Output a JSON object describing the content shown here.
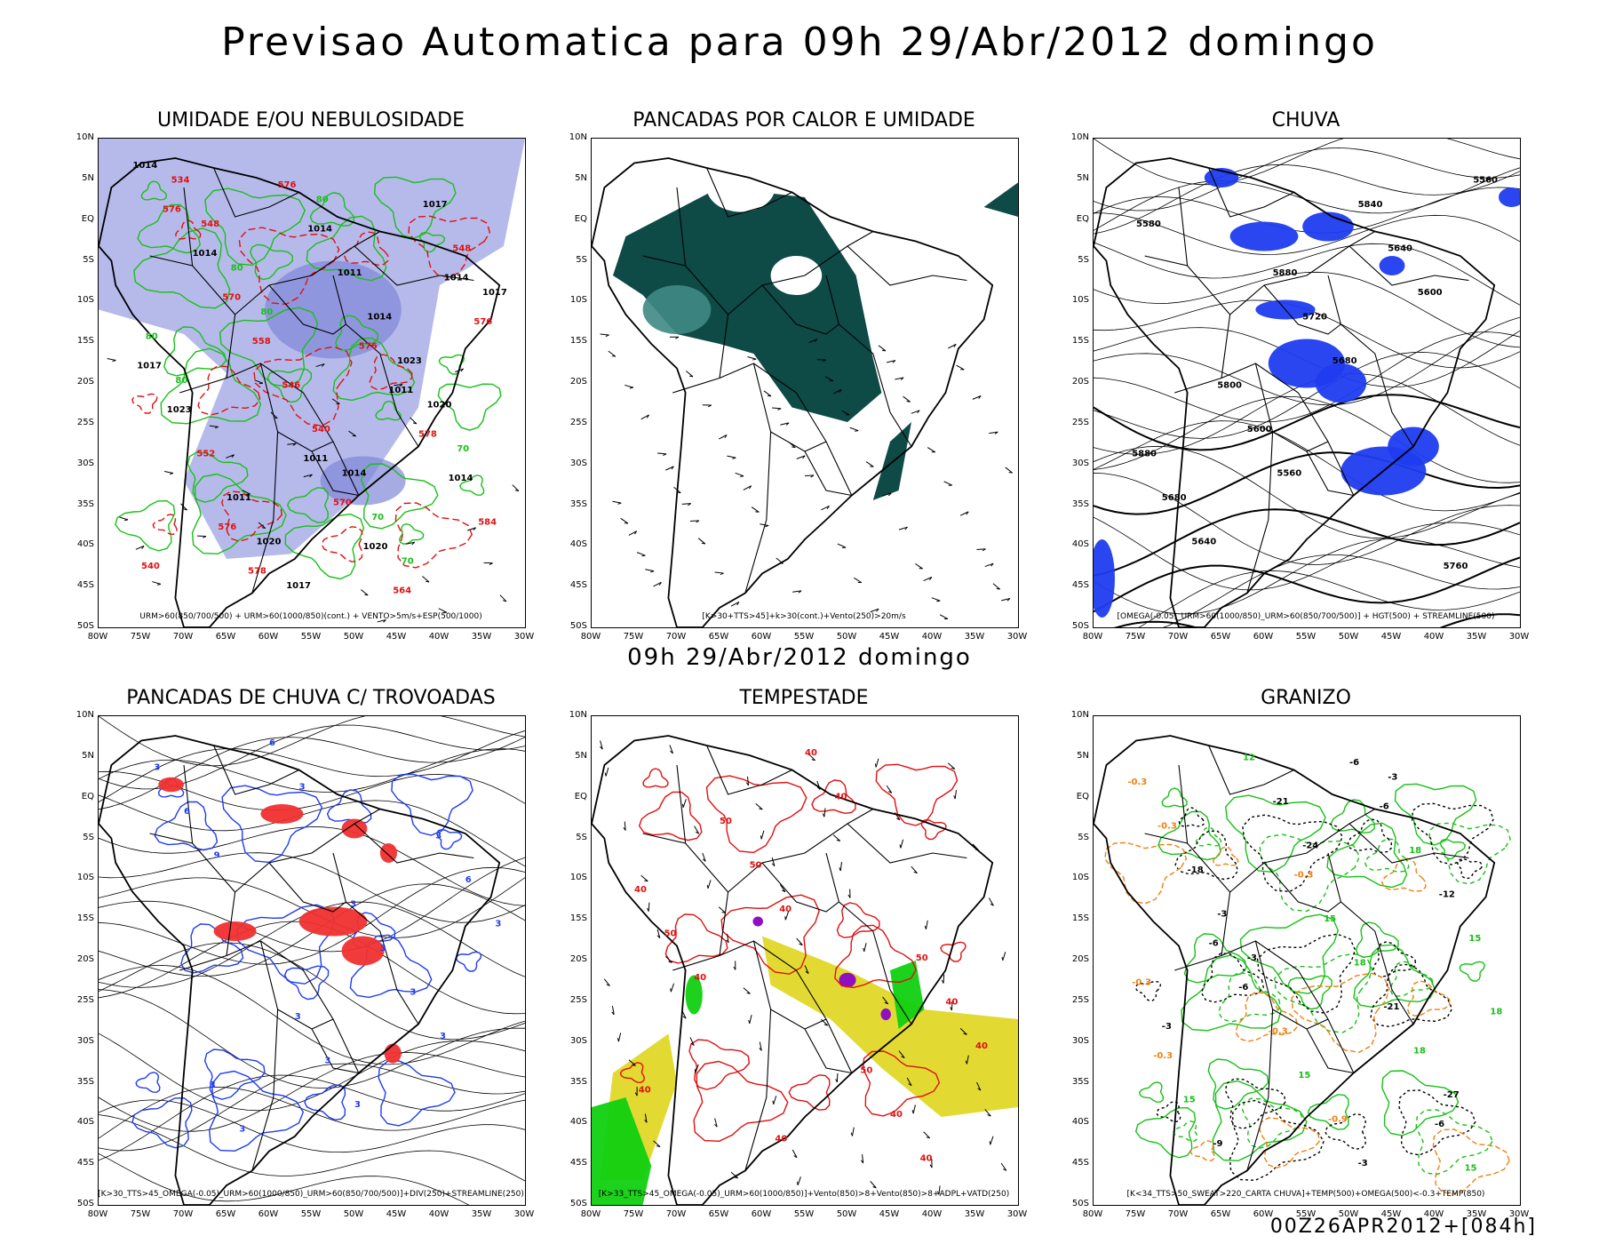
{
  "header": {
    "title": "Previsao Automatica para 09h 29/Abr/2012 domingo",
    "subtitle": "09h 29/Abr/2012 domingo",
    "footer": "00Z26APR2012+[084h]"
  },
  "axes": {
    "lat_labels": [
      "10N",
      "5N",
      "EQ",
      "5S",
      "10S",
      "15S",
      "20S",
      "25S",
      "30S",
      "35S",
      "40S",
      "45S",
      "50S"
    ],
    "lon_labels": [
      "80W",
      "75W",
      "70W",
      "65W",
      "60W",
      "55W",
      "50W",
      "45W",
      "40W",
      "35W",
      "30W"
    ]
  },
  "colors": {
    "humidity_fill": "#a9aee8",
    "green_contour": "#18c018",
    "red_contour": "#e01010",
    "dark_teal": "#0e4a46",
    "rain_blue": "#1f3cf0",
    "storm_red": "#f03030",
    "storm_yellow": "#e0d828",
    "storm_green": "#10d010",
    "storm_purple": "#9010c0",
    "hail_orange": "#f08010"
  },
  "panels": [
    {
      "id": "umidade",
      "title": "UMIDADE E/OU NEBULOSIDADE",
      "caption": "URM>60(850/700/500) + URM>60(1000/850)(cont.) + VENTO>5m/s+ESP(500/1000)",
      "labels": [
        "1014",
        "576",
        "576",
        "1014",
        "1011",
        "576",
        "1011",
        "578",
        "576",
        "570",
        "1014",
        "578",
        "576",
        "1017",
        "1020",
        "570",
        "1014",
        "1014",
        "1023",
        "564",
        "558",
        "584",
        "1011",
        "552",
        "1017",
        "546",
        "540",
        "1014",
        "1011",
        "548",
        "540",
        "534",
        "1023",
        "1020",
        "1017",
        "1014",
        "548",
        "1020",
        "1017",
        "80",
        "70",
        "80",
        "70",
        "80",
        "80",
        "70",
        "80"
      ]
    },
    {
      "id": "pancadas_calor",
      "title": "PANCADAS POR CALOR E UMIDADE",
      "caption": "[K>30+TTS>45]+k>30(cont.)+Vento(250)>20m/s",
      "labels": []
    },
    {
      "id": "chuva",
      "title": "CHUVA",
      "caption": "[OMEGA(-0.05)_URM>60(1000/850)_URM>60(850/700/500)] + HGT(500) + STREAMLINE(500)",
      "labels": [
        "5880",
        "5880",
        "5840",
        "5800",
        "5760",
        "5720",
        "5680",
        "5640",
        "5600",
        "5560",
        "5680",
        "5640",
        "5600",
        "5560",
        "5580"
      ]
    },
    {
      "id": "trovoadas",
      "title": "PANCADAS DE CHUVA C/ TROVOADAS",
      "caption": "[K>30_TTS>45_OMEGA(-0.05)_URM>60(1000/850)_URM>60(850/700/500)]+DIV(250)+STREAMLINE(250)",
      "labels": [
        "3",
        "3",
        "3",
        "3",
        "3",
        "3",
        "3",
        "6",
        "3",
        "6",
        "3",
        "6",
        "3",
        "3",
        "9",
        "3",
        "3"
      ]
    },
    {
      "id": "tempestade",
      "title": "TEMPESTADE",
      "caption": "[K>33_TTS>45_OMEGA(-0.05)_URM>60(1000/850)]+Vento(850)>8+Vento(850)>8+ADPL+VATD(250)",
      "labels": [
        "50",
        "40",
        "40",
        "50",
        "50",
        "40",
        "40",
        "50",
        "40",
        "50",
        "40",
        "40",
        "40",
        "40",
        "40",
        "40"
      ]
    },
    {
      "id": "granizo",
      "title": "GRANIZO",
      "caption": "[K<34_TTS>50_SWEAT>220_CARTA CHUVA]+TEMP(500)+OMEGA(500)<-0.3+TEMP(850)",
      "labels": [
        "18",
        "-6",
        "-6",
        "-6",
        "-0.3",
        "-0.3",
        "-6",
        "-6",
        "15",
        "15",
        "15",
        "18",
        "-0.3",
        "-0.3",
        "18",
        "-9",
        "-12",
        "15",
        "-0.3",
        "-21",
        "12",
        "15",
        "-0.9",
        "-18",
        "18",
        "-21",
        "-0.3",
        "-3",
        "-3",
        "-27",
        "-24",
        "-3",
        "-3",
        "-3"
      ]
    }
  ]
}
